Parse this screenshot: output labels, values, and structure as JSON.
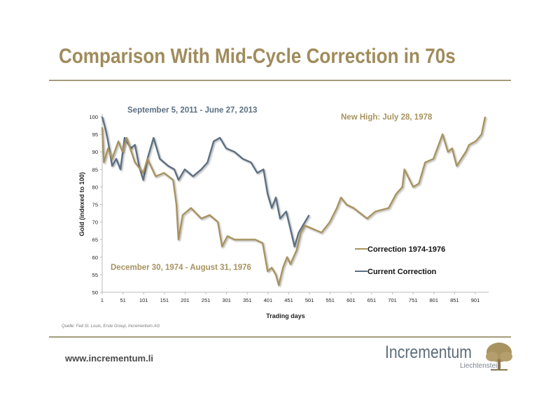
{
  "page": {
    "title": "Comparison With Mid-Cycle Correction in 70s",
    "source": "Quelle: Fed St. Louis, Erste Group, Incrementum AG",
    "url": "www.incrementum.li",
    "logo_text": "Incrementum",
    "logo_sub": "Liechtenstein"
  },
  "colors": {
    "gold": "#a8935f",
    "blue": "#5b6f82",
    "title": "#a08c5c"
  },
  "chart_data": {
    "type": "line",
    "xlabel": "Trading days",
    "ylabel": "Gold (indexed to 100)",
    "xlim": [
      1,
      930
    ],
    "ylim": [
      50,
      100
    ],
    "xticks": [
      1,
      51,
      101,
      151,
      201,
      251,
      301,
      351,
      401,
      451,
      501,
      551,
      601,
      651,
      701,
      751,
      801,
      851,
      901
    ],
    "yticks": [
      50,
      55,
      60,
      65,
      70,
      75,
      80,
      85,
      90,
      95,
      100
    ],
    "grid": false,
    "legend": "right",
    "annotations": [
      {
        "text": "September 5, 2011 -  June 27, 2013",
        "color": "blue"
      },
      {
        "text": "New High: July 28, 1978",
        "color": "gold"
      },
      {
        "text": "December 30, 1974 - August 31, 1976",
        "color": "gold"
      }
    ],
    "series": [
      {
        "name": "Correction 1974-1976",
        "color": "gold",
        "x": [
          1,
          5,
          15,
          25,
          40,
          50,
          60,
          80,
          100,
          110,
          130,
          150,
          172,
          180,
          185,
          195,
          215,
          240,
          260,
          280,
          290,
          303,
          320,
          337,
          370,
          388,
          400,
          410,
          420,
          427,
          437,
          447,
          455,
          470,
          480,
          490,
          510,
          530,
          550,
          567,
          577,
          590,
          607,
          629,
          640,
          660,
          692,
          710,
          725,
          730,
          751,
          765,
          780,
          800,
          822,
          835,
          845,
          856,
          878,
          886,
          902,
          916,
          923,
          925
        ],
        "y": [
          97,
          87,
          91,
          88,
          93,
          90,
          94,
          87,
          84,
          88,
          83,
          84,
          82,
          75,
          65,
          72,
          74,
          71,
          72,
          70,
          63,
          66,
          65,
          65,
          65,
          64,
          56,
          57,
          55,
          52,
          57,
          60,
          58,
          62,
          67,
          69,
          68,
          67,
          70,
          74,
          77,
          75,
          74,
          72,
          71,
          73,
          74,
          78,
          80,
          85,
          80,
          81,
          87,
          88,
          95,
          90,
          91,
          86,
          90,
          92,
          93,
          95,
          99,
          100
        ]
      },
      {
        "name": "Current Correction",
        "color": "blue",
        "x": [
          1,
          10,
          15,
          25,
          35,
          45,
          55,
          70,
          80,
          90,
          100,
          110,
          125,
          140,
          160,
          175,
          185,
          200,
          220,
          240,
          255,
          270,
          285,
          300,
          320,
          340,
          360,
          375,
          390,
          400,
          410,
          420,
          430,
          445,
          455,
          465,
          475,
          485,
          495,
          500
        ],
        "y": [
          100,
          96,
          93,
          86,
          88,
          85,
          94,
          91,
          92,
          86,
          82,
          88,
          94,
          88,
          86,
          85,
          82,
          85,
          83,
          85,
          87,
          93,
          94,
          91,
          90,
          88,
          87,
          84,
          85,
          78,
          74,
          77,
          71,
          73,
          68,
          63,
          67,
          69,
          71,
          72
        ]
      }
    ]
  }
}
